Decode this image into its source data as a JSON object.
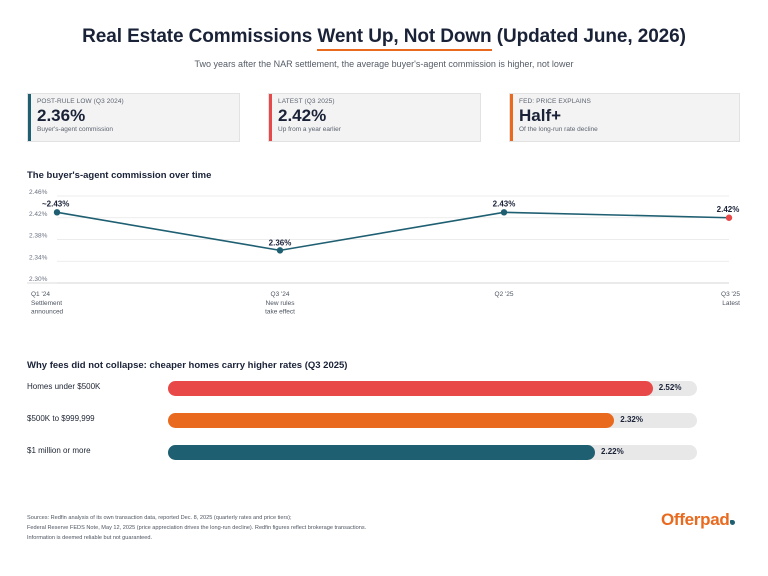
{
  "header": {
    "title_before": "Real Estate Commissions ",
    "title_highlight": "Went Up, Not Down",
    "title_after": " (Updated June, 2026)",
    "subtitle": "Two years after the NAR settlement, the average buyer's-agent commission is higher, not lower"
  },
  "cards": [
    {
      "label": "POST-RULE LOW (Q3 2024)",
      "value": "2.36%",
      "note": "Buyer's-agent commission",
      "color": "#1f5f72"
    },
    {
      "label": "LATEST (Q3 2025)",
      "value": "2.42%",
      "note": "Up from a year earlier",
      "color": "#e94848"
    },
    {
      "label": "FED: PRICE EXPLAINS",
      "value": "Half+",
      "note": "Of the long-run rate decline",
      "color": "#e96a1f"
    }
  ],
  "sections": {
    "line_title": "The buyer's-agent commission over time",
    "bar_title": "Why fees did not collapse: cheaper homes carry higher rates (Q3 2025)"
  },
  "chart_data": [
    {
      "type": "line",
      "title": "The buyer's-agent commission over time",
      "x": [
        "Q1 '24",
        "Q3 '24",
        "Q2 '25",
        "Q3 '25"
      ],
      "x_sublabels": [
        "Settlement announced",
        "New rules take effect",
        "",
        "Latest"
      ],
      "series": [
        {
          "values": [
            2.43,
            2.36,
            2.43,
            2.42
          ]
        }
      ],
      "point_labels": [
        "~2.43%",
        "2.36%",
        "2.43%",
        "2.42%"
      ],
      "yticks": [
        "2.46%",
        "2.42%",
        "2.38%",
        "2.34%",
        "2.30%"
      ],
      "ylim": [
        2.3,
        2.46
      ],
      "grid": "horizontal",
      "line_color": "#1f5f72",
      "latest_color": "#e94848"
    },
    {
      "type": "bar",
      "title": "Why fees did not collapse: cheaper homes carry higher rates (Q3 2025)",
      "categories": [
        "Homes under $500K",
        "$500K to $999,999",
        "$1 million or more"
      ],
      "values": [
        2.52,
        2.32,
        2.22
      ],
      "value_labels": [
        "2.52%",
        "2.32%",
        "2.22%"
      ],
      "colors": [
        "#e94848",
        "#e96a1f",
        "#1f5f72"
      ],
      "xlim": [
        0,
        2.75
      ]
    }
  ],
  "footer": {
    "line1": "Sources: Redfin analysis of its own transaction data, reported Dec. 8, 2025 (quarterly rates and price tiers);",
    "line2": "Federal Reserve FEDS Note, May 12, 2025 (price appreciation drives the long-run decline). Redfin figures reflect brokerage transactions.",
    "line3": "Information is deemed reliable but not guaranteed."
  },
  "logo": {
    "text": "Offerpad"
  }
}
